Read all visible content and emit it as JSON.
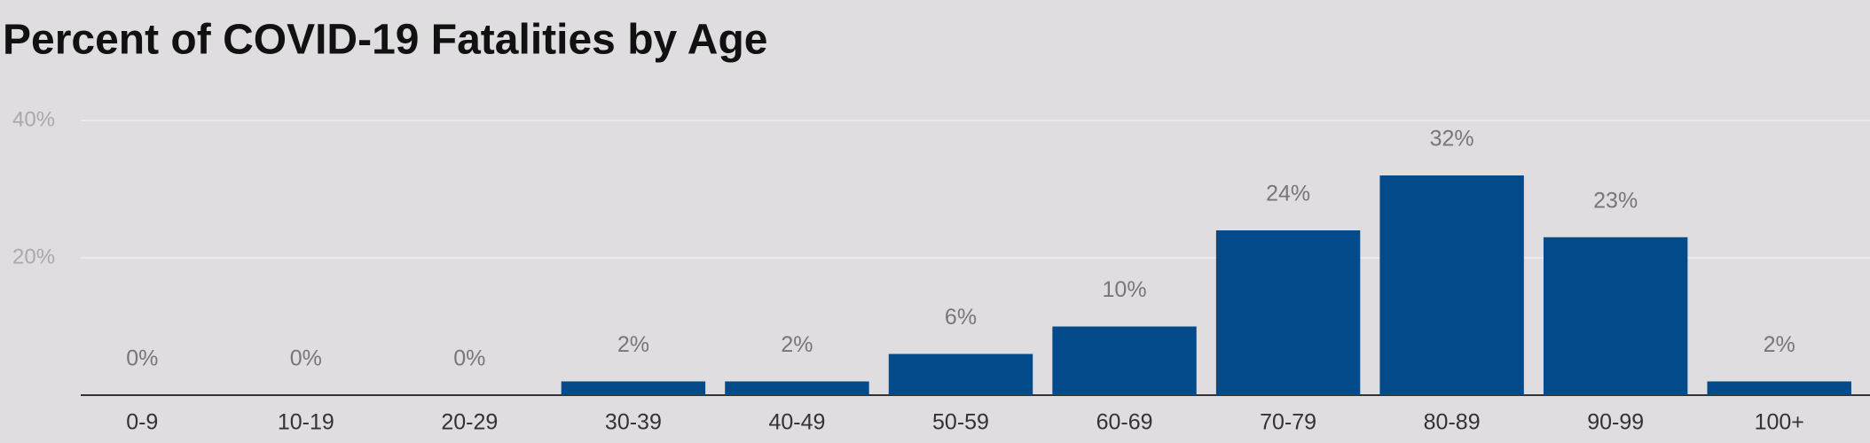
{
  "chart_data": {
    "type": "bar",
    "title": "Percent of COVID-19 Fatalities by Age",
    "categories": [
      "0-9",
      "10-19",
      "20-29",
      "30-39",
      "40-49",
      "50-59",
      "60-69",
      "70-79",
      "80-89",
      "90-99",
      "100+"
    ],
    "values": [
      0,
      0,
      0,
      2,
      2,
      6,
      10,
      24,
      32,
      23,
      2
    ],
    "value_labels": [
      "0%",
      "0%",
      "0%",
      "2%",
      "2%",
      "6%",
      "10%",
      "24%",
      "32%",
      "23%",
      "2%"
    ],
    "color": "#034a8a",
    "ylim": [
      0,
      40
    ],
    "yticks": [
      {
        "value": 20,
        "label": "20%"
      },
      {
        "value": 40,
        "label": "40%"
      }
    ],
    "grid": true
  }
}
